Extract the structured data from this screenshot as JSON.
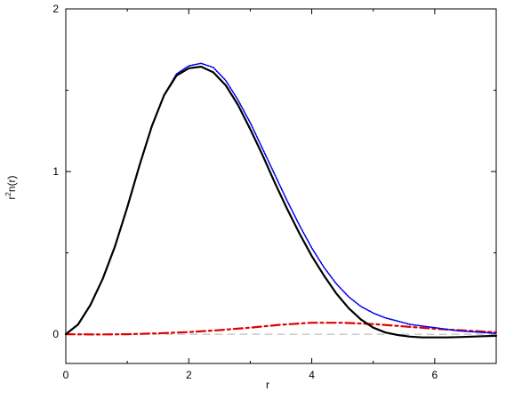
{
  "chart_data": {
    "type": "line",
    "title": "",
    "xlabel": "r",
    "ylabel_main": "r",
    "ylabel_sup": "2",
    "ylabel_rest": "n(r)",
    "xlim": [
      0,
      7
    ],
    "ylim": [
      -0.18,
      2
    ],
    "x_ticks": [
      0,
      2,
      4,
      6
    ],
    "x_tick_labels": [
      "0",
      "2",
      "4",
      "6"
    ],
    "y_ticks": [
      0,
      1,
      2
    ],
    "y_tick_labels": [
      "0",
      "1",
      "2"
    ],
    "grid": false,
    "legend": "none",
    "series": [
      {
        "style": "dashed",
        "color": "#b0b0b0",
        "x": [
          0,
          7
        ],
        "y": [
          0,
          0
        ]
      },
      {
        "style": "dash-dot",
        "color": "#e00000",
        "x": [
          0,
          0.5,
          1.0,
          1.5,
          2.0,
          2.5,
          3.0,
          3.5,
          4.0,
          4.5,
          5.0,
          5.5,
          6.0,
          6.5,
          7.0
        ],
        "y": [
          0,
          -0.002,
          0.0,
          0.005,
          0.013,
          0.025,
          0.04,
          0.058,
          0.07,
          0.07,
          0.062,
          0.048,
          0.033,
          0.022,
          0.012
        ]
      },
      {
        "style": "dotted",
        "color": "#0000ee",
        "x": [
          0,
          0.2,
          0.4,
          0.6,
          0.8,
          1.0,
          1.2,
          1.4,
          1.6,
          1.8,
          2.0,
          2.2,
          2.4,
          2.6,
          2.8,
          3.0,
          3.2,
          3.4,
          3.6,
          3.8,
          4.0,
          4.2,
          4.4,
          4.6,
          4.8,
          5.0,
          5.2,
          5.4,
          5.6,
          5.8,
          6.0,
          6.2,
          6.4,
          6.6,
          6.8,
          7.0
        ],
        "y": [
          0,
          0.06,
          0.18,
          0.34,
          0.54,
          0.78,
          1.04,
          1.28,
          1.47,
          1.6,
          1.65,
          1.665,
          1.64,
          1.56,
          1.44,
          1.3,
          1.14,
          0.98,
          0.82,
          0.67,
          0.53,
          0.41,
          0.31,
          0.23,
          0.17,
          0.13,
          0.1,
          0.08,
          0.06,
          0.05,
          0.04,
          0.03,
          0.02,
          0.015,
          0.01,
          0.005
        ]
      },
      {
        "style": "solid",
        "color": "#000000",
        "x": [
          0,
          0.2,
          0.4,
          0.6,
          0.8,
          1.0,
          1.2,
          1.4,
          1.6,
          1.8,
          2.0,
          2.2,
          2.4,
          2.6,
          2.8,
          3.0,
          3.2,
          3.4,
          3.6,
          3.8,
          4.0,
          4.2,
          4.4,
          4.6,
          4.8,
          5.0,
          5.2,
          5.4,
          5.6,
          5.8,
          6.0,
          6.2,
          6.4,
          6.6,
          6.8,
          7.0
        ],
        "y": [
          0,
          0.06,
          0.18,
          0.34,
          0.54,
          0.78,
          1.04,
          1.28,
          1.47,
          1.59,
          1.635,
          1.645,
          1.61,
          1.53,
          1.41,
          1.26,
          1.1,
          0.93,
          0.77,
          0.62,
          0.48,
          0.36,
          0.25,
          0.16,
          0.09,
          0.04,
          0.01,
          -0.005,
          -0.015,
          -0.02,
          -0.02,
          -0.02,
          -0.018,
          -0.015,
          -0.012,
          -0.01
        ]
      }
    ]
  }
}
